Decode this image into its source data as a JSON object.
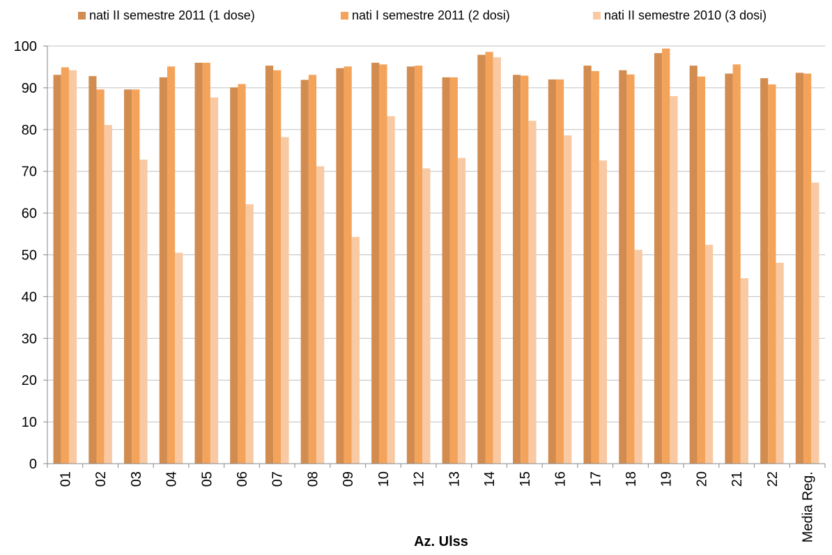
{
  "chart_data": {
    "type": "bar",
    "categories": [
      "01",
      "02",
      "03",
      "04",
      "05",
      "06",
      "07",
      "08",
      "09",
      "10",
      "12",
      "13",
      "14",
      "15",
      "16",
      "17",
      "18",
      "19",
      "20",
      "21",
      "22",
      "Media Reg."
    ],
    "series": [
      {
        "name": "nati II semestre 2011 (1 dose)",
        "color": "#D28C50",
        "values": [
          93.1,
          92.8,
          89.6,
          92.5,
          96.0,
          90.1,
          95.3,
          91.9,
          94.7,
          96.0,
          95.1,
          92.5,
          97.9,
          93.1,
          92.0,
          95.3,
          94.2,
          98.3,
          95.3,
          93.4,
          92.3,
          93.6
        ]
      },
      {
        "name": "nati I semestre 2011 (2 dosi)",
        "color": "#F4A35B",
        "values": [
          94.9,
          89.6,
          89.6,
          95.1,
          96.0,
          90.9,
          94.2,
          93.1,
          95.1,
          95.6,
          95.3,
          92.5,
          98.6,
          92.9,
          92.0,
          94.0,
          93.2,
          99.4,
          92.7,
          95.6,
          90.8,
          93.4
        ]
      },
      {
        "name": "nati II semestre 2010 (3 dosi)",
        "color": "#F8C9A2",
        "values": [
          94.2,
          81.1,
          72.8,
          50.5,
          87.7,
          62.1,
          78.2,
          71.2,
          54.3,
          83.2,
          70.7,
          73.2,
          97.3,
          82.1,
          78.6,
          72.6,
          51.2,
          88.0,
          52.4,
          44.4,
          48.1,
          67.3
        ]
      }
    ],
    "xlabel": "Az. Ulss",
    "ylabel": "",
    "ylim": [
      0,
      100
    ],
    "yticks": [
      0,
      10,
      20,
      30,
      40,
      50,
      60,
      70,
      80,
      90,
      100
    ],
    "grid": true,
    "legend_position": "top"
  }
}
